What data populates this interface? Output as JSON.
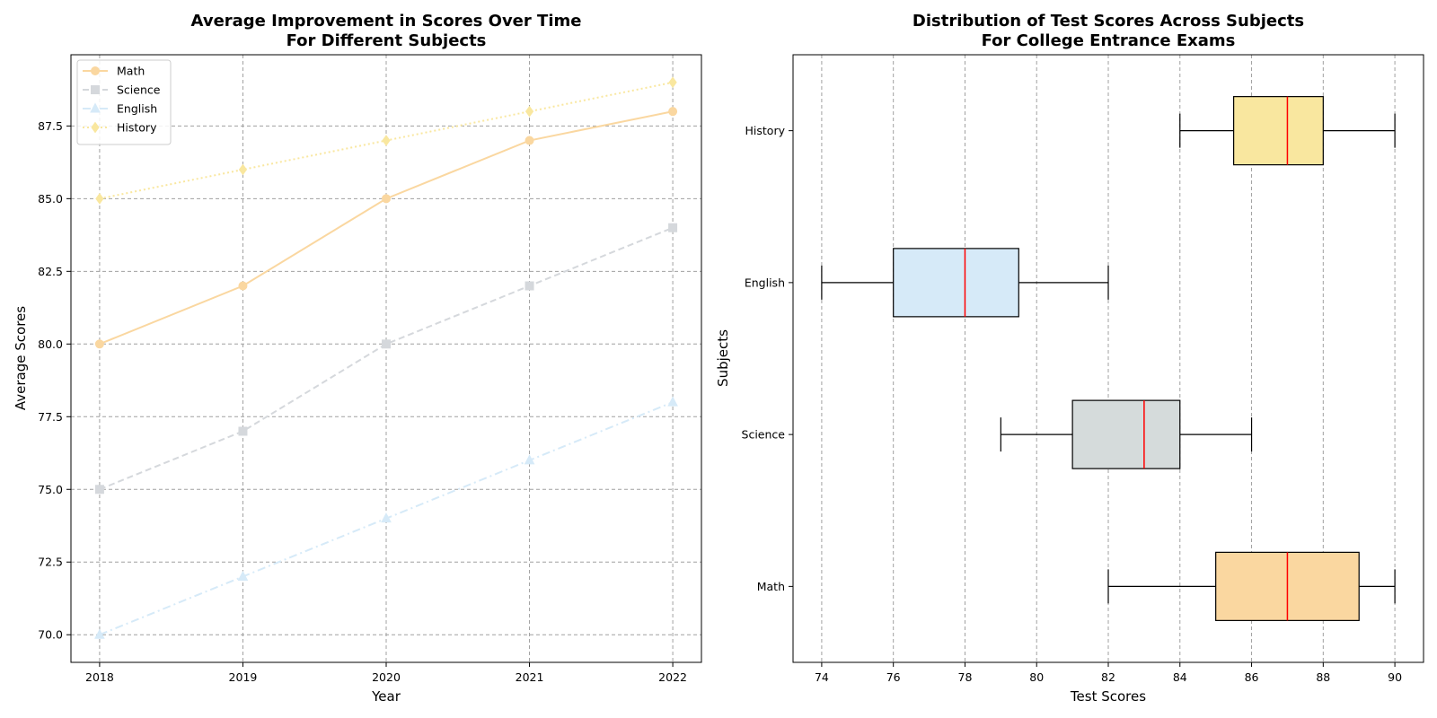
{
  "chart_data": [
    {
      "type": "line",
      "title": "Average Improvement in Scores Over Time\nFor Different Subjects",
      "xlabel": "Year",
      "ylabel": "Average Scores",
      "x": [
        2018,
        2019,
        2020,
        2021,
        2022
      ],
      "xticks": [
        "2018",
        "2019",
        "2020",
        "2021",
        "2022"
      ],
      "yticks": [
        "70.0",
        "72.5",
        "75.0",
        "77.5",
        "80.0",
        "82.5",
        "85.0",
        "87.5"
      ],
      "ylim": [
        69.05,
        89.95
      ],
      "grid": true,
      "legend_position": "upper-left",
      "series": [
        {
          "name": "Math",
          "values": [
            80,
            82,
            85,
            87,
            88
          ],
          "color": "#fad7a0",
          "dash": "solid",
          "marker": "circle"
        },
        {
          "name": "Science",
          "values": [
            75,
            77,
            80,
            82,
            84
          ],
          "color": "#d5d8dc",
          "dash": "dashed",
          "marker": "square"
        },
        {
          "name": "English",
          "values": [
            70,
            72,
            74,
            76,
            78
          ],
          "color": "#d6eaf8",
          "dash": "dashdot",
          "marker": "triangle"
        },
        {
          "name": "History",
          "values": [
            85,
            86,
            87,
            88,
            89
          ],
          "color": "#f9e79f",
          "dash": "dotted",
          "marker": "diamond"
        }
      ]
    },
    {
      "type": "boxplot",
      "orientation": "horizontal",
      "title": "Distribution of Test Scores Across Subjects\nFor College Entrance Exams",
      "xlabel": "Test Scores",
      "ylabel": "Subjects",
      "xticks": [
        "74",
        "76",
        "78",
        "80",
        "82",
        "84",
        "86",
        "88",
        "90"
      ],
      "xlim": [
        73.2,
        90.8
      ],
      "grid": true,
      "median_color": "#ff0000",
      "boxes": [
        {
          "category": "Math",
          "min": 82,
          "q1": 85,
          "median": 87,
          "q3": 89,
          "max": 90,
          "color": "#fad7a0"
        },
        {
          "category": "Science",
          "min": 79,
          "q1": 81,
          "median": 83,
          "q3": 84,
          "max": 86,
          "color": "#d5dbdb"
        },
        {
          "category": "English",
          "min": 74,
          "q1": 76,
          "median": 78,
          "q3": 79.5,
          "max": 82,
          "color": "#d6eaf8"
        },
        {
          "category": "History",
          "min": 84,
          "q1": 85.5,
          "median": 87,
          "q3": 88,
          "max": 90,
          "color": "#f9e79f"
        }
      ]
    }
  ]
}
